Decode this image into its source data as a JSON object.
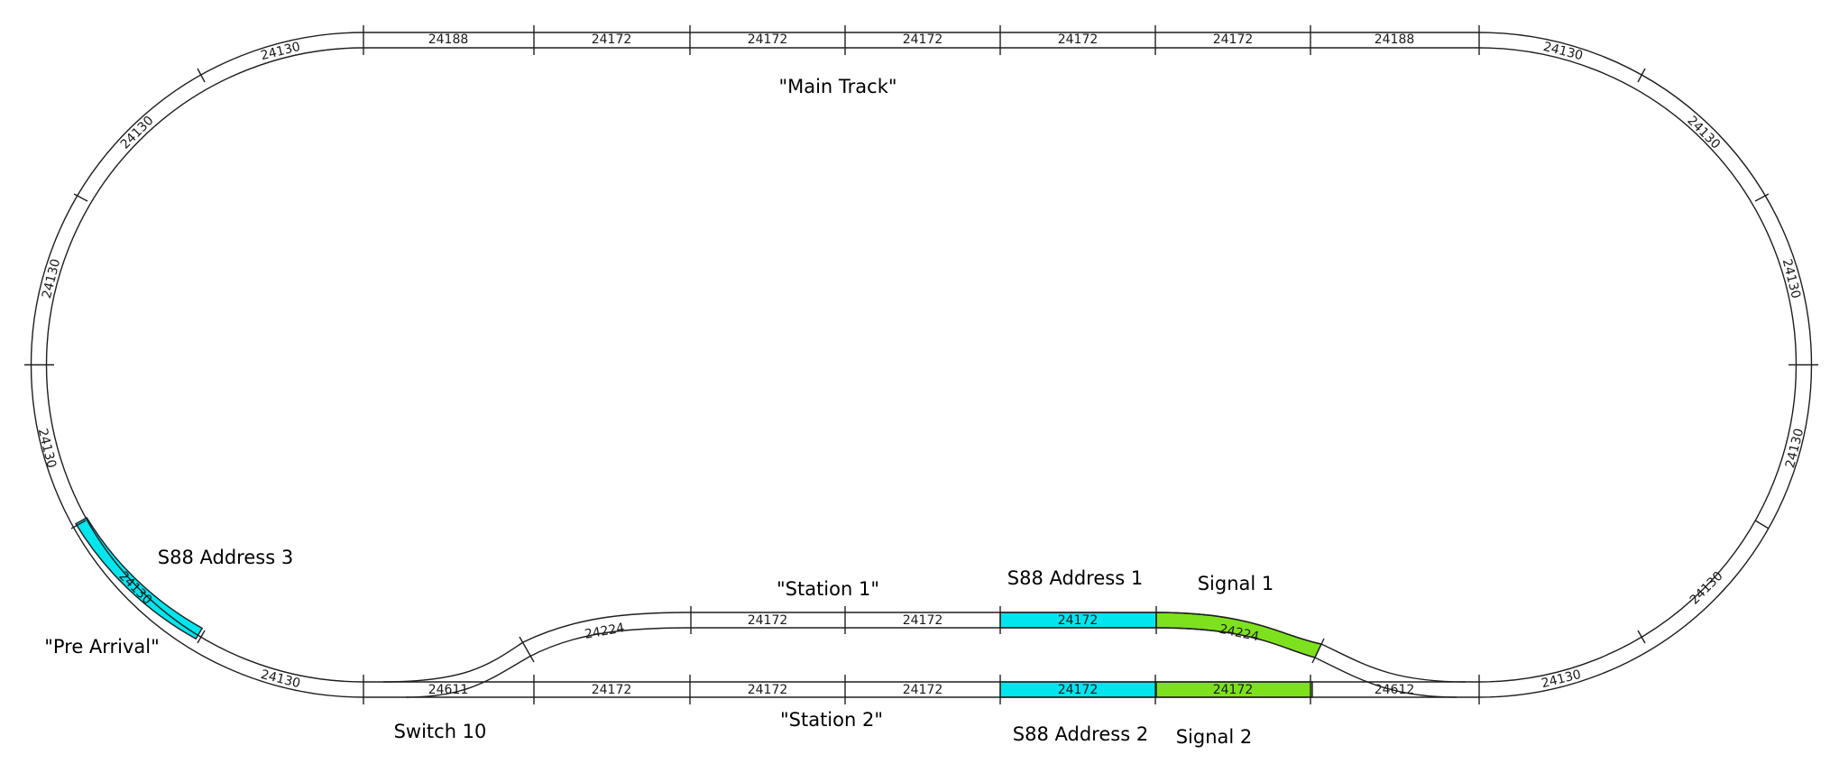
{
  "colors": {
    "rail": "#1e1e1e",
    "s88_block": "#00e5ee",
    "signal_block": "#7ee11e",
    "background": "#ffffff"
  },
  "pieces": {
    "top": [
      "24188",
      "24172",
      "24172",
      "24172",
      "24172",
      "24172",
      "24188"
    ],
    "station1": [
      "24172",
      "24172",
      "24172"
    ],
    "station2": [
      "24172",
      "24172",
      "24172",
      "24172",
      "24172",
      "24172"
    ],
    "curve_left_upper": [
      "24130",
      "24130",
      "24130"
    ],
    "curve_left_lower": [
      "24130",
      "24130",
      "24130"
    ],
    "curve_right_upper": [
      "24130",
      "24130",
      "24130"
    ],
    "curve_right_lower": [
      "24130",
      "24130",
      "24130"
    ],
    "turnout_left": "24611",
    "turnout_right": "24612",
    "bend_left": "24224",
    "bend_right": "24224"
  },
  "labels": {
    "main_track": "\"Main Track\"",
    "station_1": "\"Station 1\"",
    "station_2": "\"Station 2\"",
    "pre_arrival": "\"Pre Arrival\"",
    "s88_address_1": "S88 Address 1",
    "s88_address_2": "S88 Address 2",
    "s88_address_3": "S88 Address 3",
    "signal_1": "Signal 1",
    "signal_2": "Signal 2",
    "switch_10": "Switch 10"
  }
}
